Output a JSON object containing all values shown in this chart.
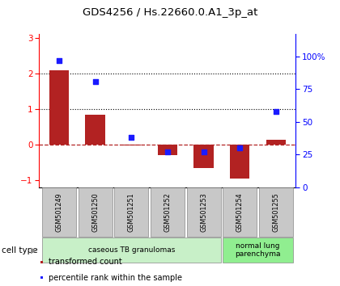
{
  "title": "GDS4256 / Hs.22660.0.A1_3p_at",
  "samples": [
    "GSM501249",
    "GSM501250",
    "GSM501251",
    "GSM501252",
    "GSM501253",
    "GSM501254",
    "GSM501255"
  ],
  "transformed_counts": [
    2.1,
    0.85,
    -0.03,
    -0.3,
    -0.65,
    -0.95,
    0.13
  ],
  "percentile_ranks": [
    97,
    81,
    38,
    27,
    27,
    30,
    58
  ],
  "ylim_left": [
    -1.2,
    3.1
  ],
  "ylim_right": [
    0,
    116.9
  ],
  "yticks_left": [
    -1,
    0,
    1,
    2,
    3
  ],
  "yticks_right": [
    0,
    25,
    50,
    75,
    100
  ],
  "yticklabels_right": [
    "0",
    "25",
    "50",
    "75",
    "100%"
  ],
  "hlines": [
    2.0,
    1.0
  ],
  "bar_color": "#b22222",
  "dot_color": "#1a1aff",
  "bar_width": 0.55,
  "cell_type_groups": [
    {
      "label": "caseous TB granulomas",
      "start": 0,
      "end": 4,
      "color": "#c8f0c8"
    },
    {
      "label": "normal lung\nparenchyma",
      "start": 5,
      "end": 6,
      "color": "#90ee90"
    }
  ],
  "cell_type_label": "cell type",
  "legend_bar_label": "transformed count",
  "legend_dot_label": "percentile rank within the sample",
  "background_color": "#ffffff",
  "label_box_color": "#c8c8c8",
  "label_box_edge": "#888888"
}
